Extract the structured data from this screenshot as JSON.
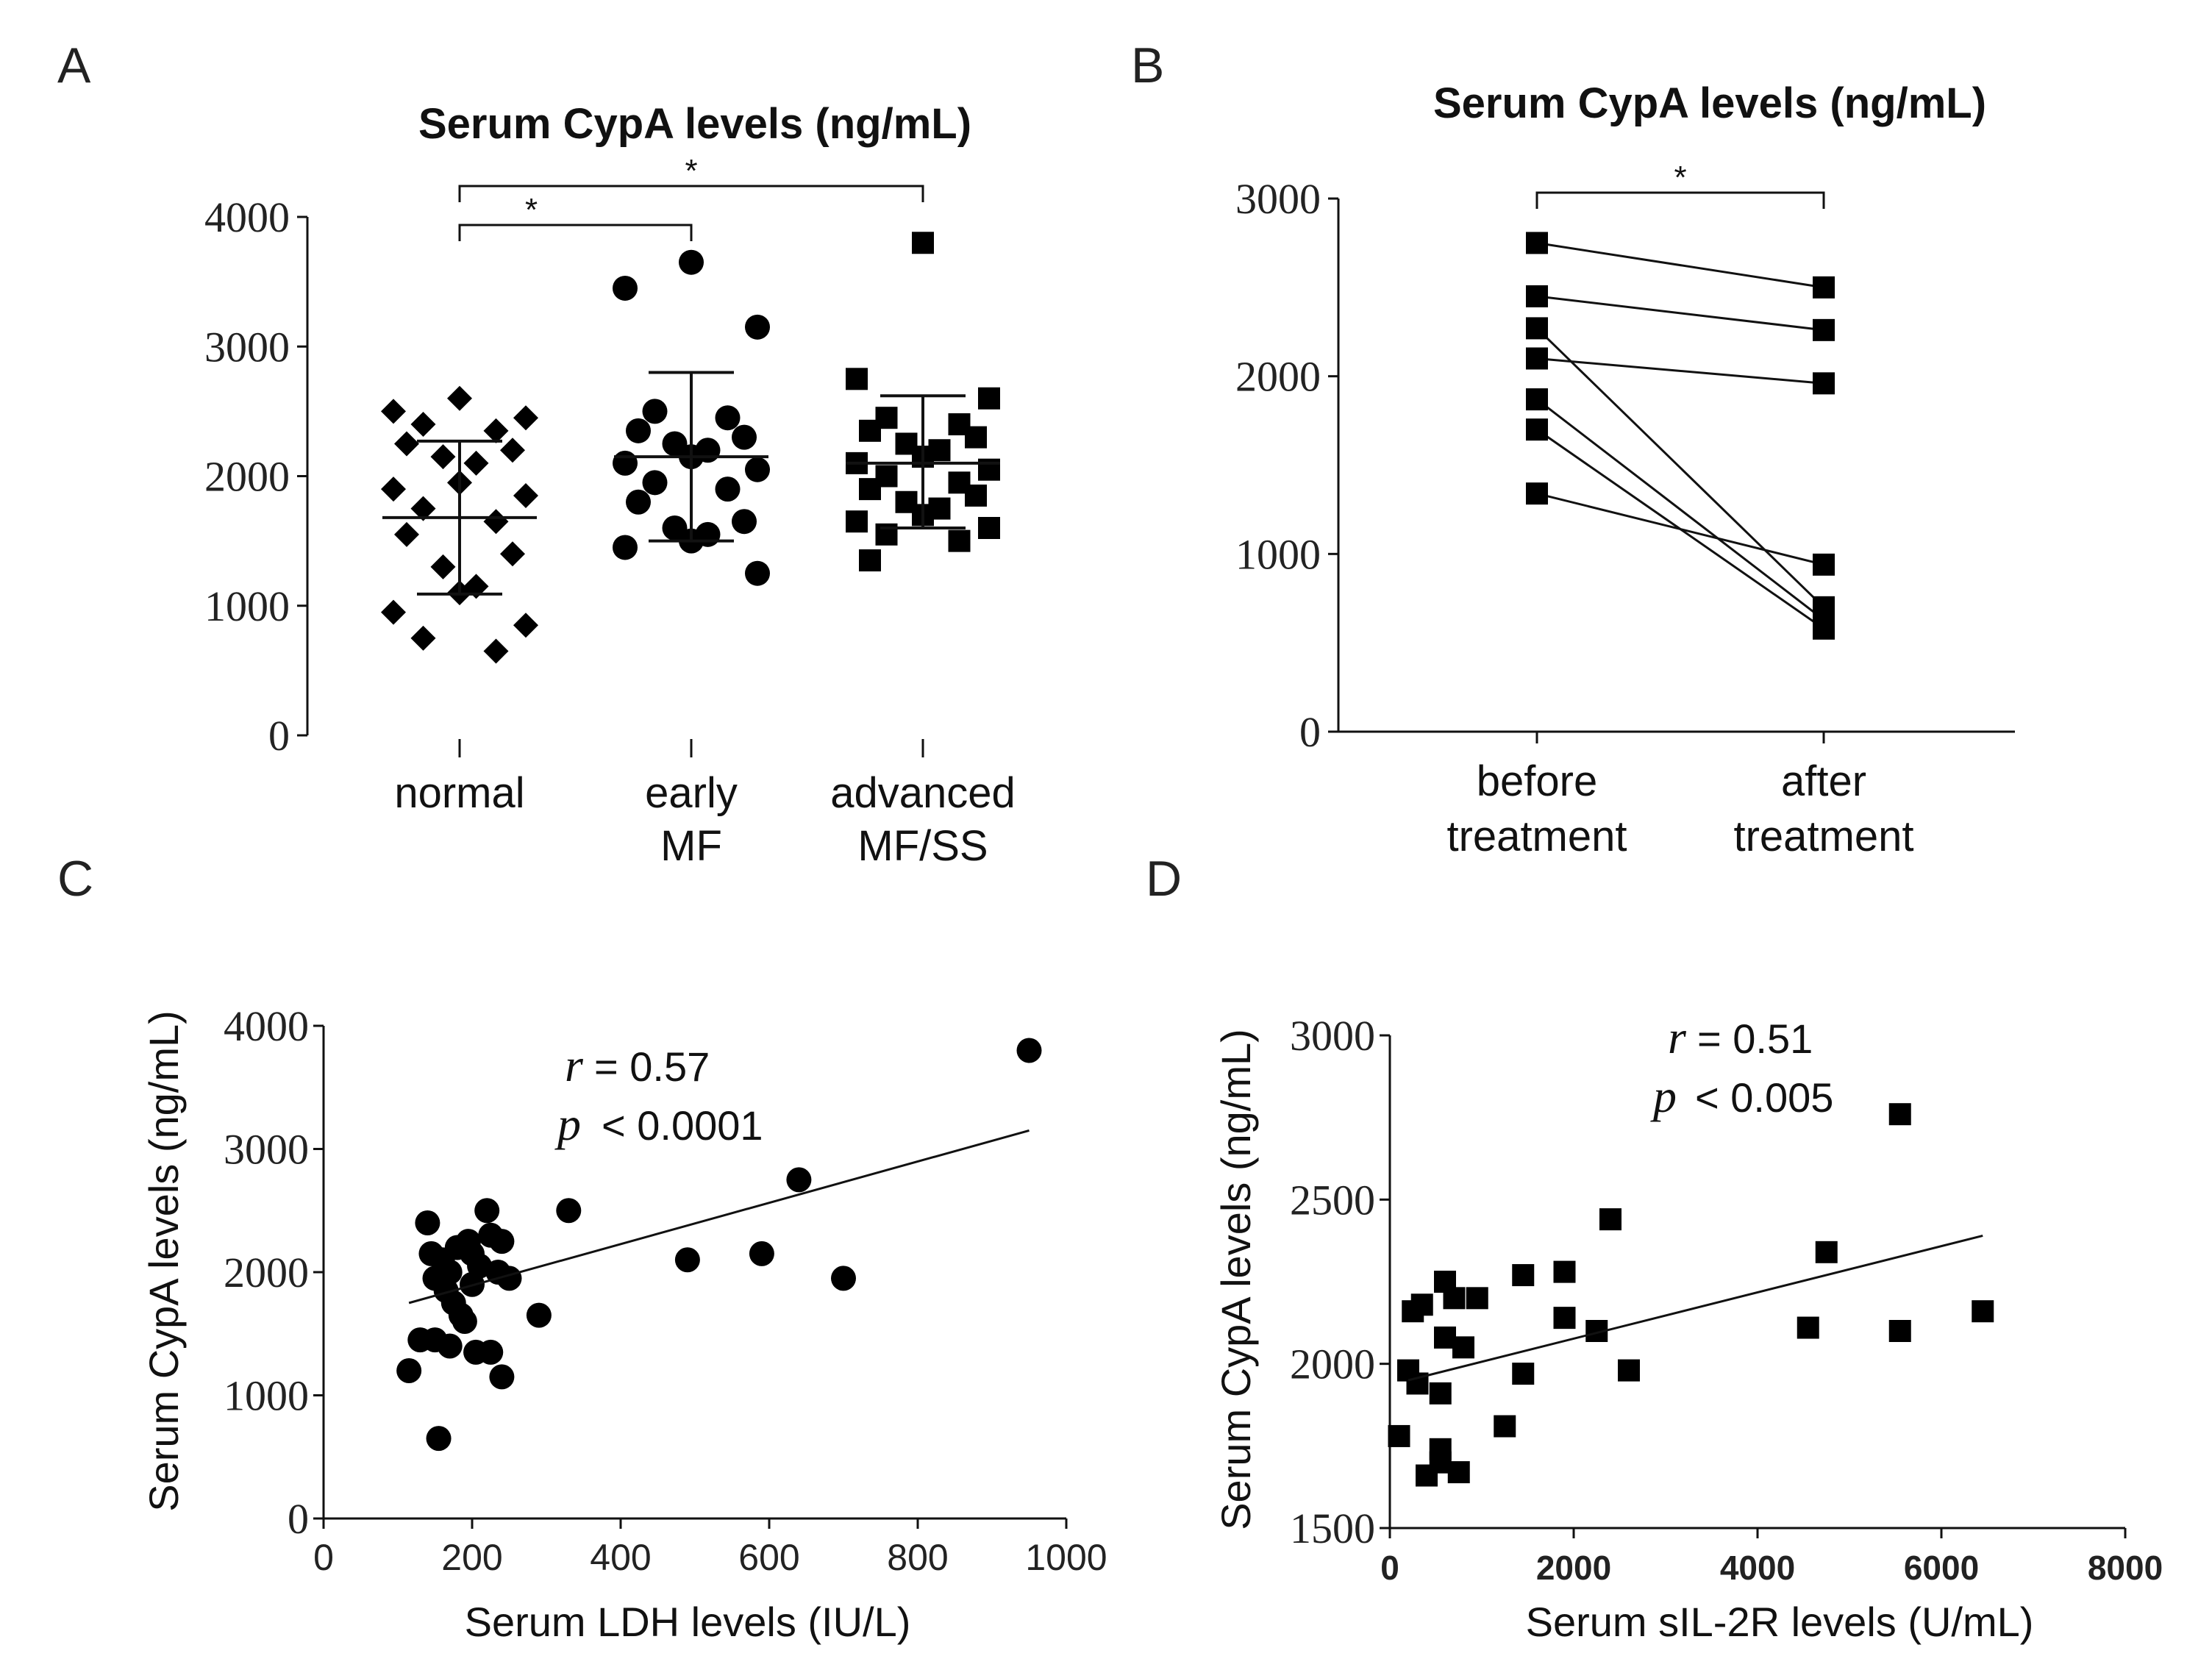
{
  "chart_data": [
    {
      "panel": "A",
      "type": "scatter",
      "title": "Serum CypA levels (ng/mL)",
      "ylim": [
        0,
        4000
      ],
      "yticks": [
        0,
        1000,
        2000,
        3000,
        4000
      ],
      "categories": [
        {
          "name": "normal",
          "lines": [
            "normal"
          ],
          "marker": "diamond",
          "values": [
            2600,
            2450,
            2350,
            2500,
            2400,
            2250,
            2200,
            2150,
            2100,
            1950,
            1900,
            1850,
            1750,
            1650,
            1550,
            1400,
            1300,
            1150,
            1100,
            950,
            850,
            750,
            650
          ],
          "mean": 1680,
          "sd_low": 1090,
          "sd_high": 2270
        },
        {
          "name": "early MF",
          "lines": [
            "early",
            "MF"
          ],
          "marker": "circle",
          "values": [
            3650,
            3450,
            3150,
            2500,
            2450,
            2350,
            2300,
            2250,
            2200,
            2150,
            2100,
            2050,
            1950,
            1900,
            1800,
            1650,
            1600,
            1550,
            1500,
            1450,
            1250
          ],
          "mean": 2150,
          "sd_low": 1500,
          "sd_high": 2800
        },
        {
          "name": "advanced MF/SS",
          "lines": [
            "advanced",
            "MF/SS"
          ],
          "marker": "square",
          "values": [
            3800,
            2750,
            2600,
            2450,
            2400,
            2350,
            2300,
            2250,
            2200,
            2150,
            2100,
            2050,
            2000,
            1950,
            1900,
            1850,
            1800,
            1750,
            1700,
            1650,
            1600,
            1550,
            1500,
            1350
          ],
          "mean": 2100,
          "sd_low": 1600,
          "sd_high": 2620
        }
      ],
      "significance": [
        {
          "from": "normal",
          "to": "early MF",
          "label": "*"
        },
        {
          "from": "normal",
          "to": "advanced MF/SS",
          "label": "*"
        }
      ]
    },
    {
      "panel": "B",
      "type": "line",
      "title": "Serum CypA levels (ng/mL)",
      "ylim": [
        0,
        3000
      ],
      "yticks": [
        0,
        1000,
        2000,
        3000
      ],
      "categories": [
        {
          "name": "before treatment",
          "lines": [
            "before",
            "treatment"
          ]
        },
        {
          "name": "after treatment",
          "lines": [
            "after",
            "treatment"
          ]
        }
      ],
      "pairs": [
        [
          2750,
          2500
        ],
        [
          2450,
          2260
        ],
        [
          2270,
          700
        ],
        [
          2100,
          1960
        ],
        [
          1870,
          630
        ],
        [
          1700,
          580
        ],
        [
          1340,
          940
        ]
      ],
      "significance": [
        {
          "from": "before treatment",
          "to": "after treatment",
          "label": "*"
        }
      ]
    },
    {
      "panel": "C",
      "type": "scatter",
      "xlabel": "Serum LDH levels (IU/L)",
      "ylabel": "Serum CypA levels (ng/mL)",
      "xlim": [
        0,
        1000
      ],
      "ylim": [
        0,
        4000
      ],
      "xticks": [
        0,
        200,
        400,
        600,
        800,
        1000
      ],
      "yticks": [
        0,
        1000,
        2000,
        3000,
        4000
      ],
      "points": [
        {
          "x": 950,
          "y": 3800
        },
        {
          "x": 640,
          "y": 2750
        },
        {
          "x": 330,
          "y": 2500
        },
        {
          "x": 220,
          "y": 2500
        },
        {
          "x": 240,
          "y": 2250
        },
        {
          "x": 490,
          "y": 2100
        },
        {
          "x": 590,
          "y": 2150
        },
        {
          "x": 700,
          "y": 1950
        },
        {
          "x": 290,
          "y": 1650
        },
        {
          "x": 140,
          "y": 2400
        },
        {
          "x": 145,
          "y": 2150
        },
        {
          "x": 160,
          "y": 2100
        },
        {
          "x": 170,
          "y": 2000
        },
        {
          "x": 180,
          "y": 2200
        },
        {
          "x": 195,
          "y": 2250
        },
        {
          "x": 210,
          "y": 2050
        },
        {
          "x": 225,
          "y": 2300
        },
        {
          "x": 235,
          "y": 2000
        },
        {
          "x": 250,
          "y": 1950
        },
        {
          "x": 150,
          "y": 1950
        },
        {
          "x": 165,
          "y": 1850
        },
        {
          "x": 175,
          "y": 1750
        },
        {
          "x": 185,
          "y": 1650
        },
        {
          "x": 200,
          "y": 1900
        },
        {
          "x": 190,
          "y": 1600
        },
        {
          "x": 130,
          "y": 1450
        },
        {
          "x": 150,
          "y": 1450
        },
        {
          "x": 170,
          "y": 1400
        },
        {
          "x": 205,
          "y": 1350
        },
        {
          "x": 225,
          "y": 1350
        },
        {
          "x": 240,
          "y": 1150
        },
        {
          "x": 115,
          "y": 1200
        },
        {
          "x": 155,
          "y": 650
        },
        {
          "x": 200,
          "y": 2150
        }
      ],
      "fit": {
        "x": [
          115,
          950
        ],
        "y": [
          1750,
          3150
        ]
      },
      "annotation": {
        "r_label": "r",
        "r_value": "= 0.57",
        "p_label": "p",
        "p_value": "< 0.0001"
      }
    },
    {
      "panel": "D",
      "type": "scatter",
      "xlabel": "Serum sIL-2R levels (U/mL)",
      "ylabel": "Serum CypA levels (ng/mL)",
      "xlim": [
        0,
        8000
      ],
      "ylim": [
        1500,
        3000
      ],
      "xticks": [
        0,
        2000,
        4000,
        6000,
        8000
      ],
      "yticks": [
        1500,
        2000,
        2500,
        3000
      ],
      "points": [
        {
          "x": 5550,
          "y": 2760
        },
        {
          "x": 2400,
          "y": 2440
        },
        {
          "x": 4750,
          "y": 2340
        },
        {
          "x": 1450,
          "y": 2270
        },
        {
          "x": 1900,
          "y": 2280
        },
        {
          "x": 1900,
          "y": 2140
        },
        {
          "x": 2250,
          "y": 2100
        },
        {
          "x": 4550,
          "y": 2110
        },
        {
          "x": 5550,
          "y": 2100
        },
        {
          "x": 6450,
          "y": 2160
        },
        {
          "x": 2600,
          "y": 1980
        },
        {
          "x": 1450,
          "y": 1970
        },
        {
          "x": 1250,
          "y": 1810
        },
        {
          "x": 250,
          "y": 2160
        },
        {
          "x": 350,
          "y": 2180
        },
        {
          "x": 600,
          "y": 2250
        },
        {
          "x": 700,
          "y": 2200
        },
        {
          "x": 950,
          "y": 2200
        },
        {
          "x": 600,
          "y": 2080
        },
        {
          "x": 800,
          "y": 2050
        },
        {
          "x": 200,
          "y": 1980
        },
        {
          "x": 300,
          "y": 1940
        },
        {
          "x": 550,
          "y": 1910
        },
        {
          "x": 100,
          "y": 1780
        },
        {
          "x": 550,
          "y": 1740
        },
        {
          "x": 550,
          "y": 1700
        },
        {
          "x": 400,
          "y": 1660
        },
        {
          "x": 750,
          "y": 1670
        }
      ],
      "fit": {
        "x": [
          200,
          6450
        ],
        "y": [
          1950,
          2390
        ]
      },
      "annotation": {
        "r_label": "r",
        "r_value": "= 0.51",
        "p_label": "p",
        "p_value": "< 0.005"
      }
    }
  ]
}
